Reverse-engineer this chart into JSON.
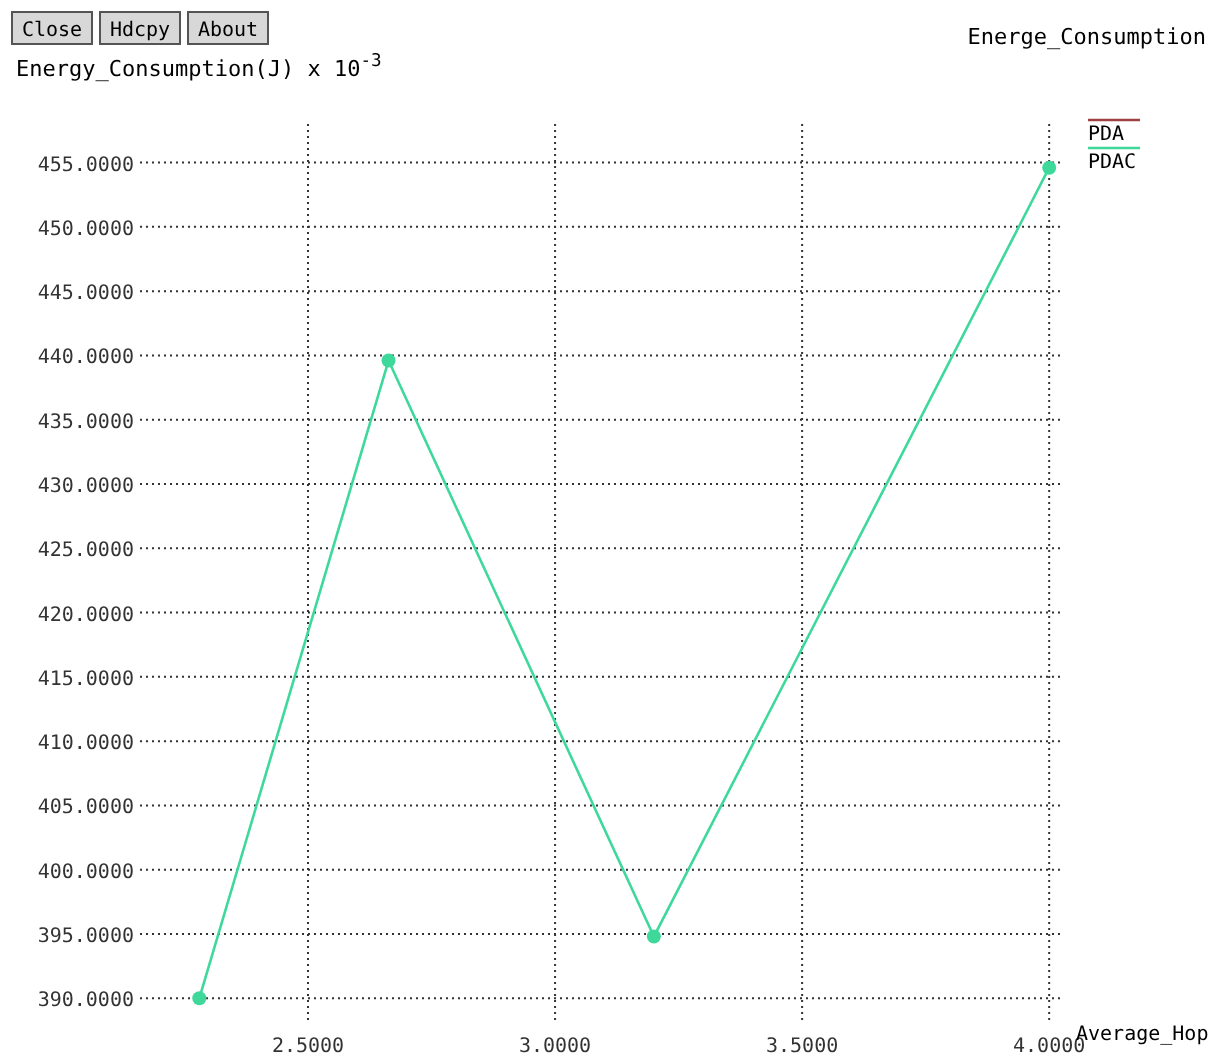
{
  "chart_data": {
    "type": "line",
    "title": "Energe_Consumption",
    "xlabel": "Average_Hop",
    "ylabel": "Energy_Consumption(J) x 10$^{-3}$",
    "annotations": [
      "Close",
      "Hdcpy",
      "About"
    ],
    "x": [
      2.28,
      2.663,
      3.2,
      4.0
    ],
    "series": [
      {
        "name": "PDA",
        "color": "#a04040",
        "values": [
          null,
          null,
          null,
          null
        ]
      },
      {
        "name": "PDAC",
        "color": "#3ed99a",
        "values": [
          390,
          439.6,
          394.8,
          454.6
        ]
      }
    ],
    "xlim": [
      2.16,
      4.03
    ],
    "ylim": [
      388,
      458
    ],
    "xticks": [
      {
        "value": 2.5,
        "label": "2.5000"
      },
      {
        "value": 3,
        "label": "3.0000"
      },
      {
        "value": 3.5,
        "label": "3.5000"
      },
      {
        "value": 4,
        "label": "4.0000"
      }
    ],
    "yticks": [
      {
        "value": 390,
        "label": "390.0000"
      },
      {
        "value": 395,
        "label": "395.0000"
      },
      {
        "value": 400,
        "label": "400.0000"
      },
      {
        "value": 405,
        "label": "405.0000"
      },
      {
        "value": 410,
        "label": "410.0000"
      },
      {
        "value": 415,
        "label": "415.0000"
      },
      {
        "value": 420,
        "label": "420.0000"
      },
      {
        "value": 425,
        "label": "425.0000"
      },
      {
        "value": 430,
        "label": "430.0000"
      },
      {
        "value": 435,
        "label": "435.0000"
      },
      {
        "value": 440,
        "label": "440.0000"
      },
      {
        "value": 445,
        "label": "445.0000"
      },
      {
        "value": 450,
        "label": "450.0000"
      },
      {
        "value": 455,
        "label": "455.0000"
      }
    ],
    "grid": true,
    "legend": "top right",
    "marker": "circle",
    "line_style": "solid"
  }
}
